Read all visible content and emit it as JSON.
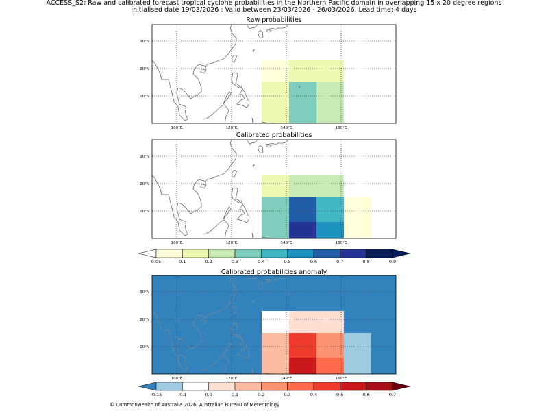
{
  "figure": {
    "title_line1": "ACCESS_S2: Raw and calibrated forecast tropical cyclone probabilities in the Northern Pacific domain in overlapping 15 x 20 degree regions",
    "title_line2": "initialised date 19/03/2026 :  Valid between 23/03/2026 - 26/03/2026. Lead time: 4 days",
    "footer": "© Commonwealth of Australia 2026, Australian Bureau of Meteorology"
  },
  "axes": {
    "lon_ticks": [
      "100°E",
      "120°E",
      "140°E",
      "160°E"
    ],
    "lat_ticks": [
      "30°N",
      "20°N",
      "10°N"
    ]
  },
  "colors": {
    "prob_scale": [
      "#ffffd9",
      "#edf8b1",
      "#c7e9b4",
      "#7fcdbb",
      "#41b6c4",
      "#1d91c0",
      "#225ea8",
      "#253494",
      "#081d58"
    ],
    "prob_under": "#ffffff",
    "prob_over": "#081d58",
    "anom_scale": [
      "#9ecae1",
      "#ffffff",
      "#fee0d2",
      "#fcbba1",
      "#fc9272",
      "#fb6a4a",
      "#ef3b2c",
      "#cb181d",
      "#a50f15"
    ],
    "anom_under": "#3182bd",
    "anom_over": "#67000d",
    "anom_background": "#3182bd",
    "coast_dark": "#555555",
    "coast_light": "#888888"
  },
  "chart_data": [
    {
      "type": "heatmap",
      "title": "Raw probabilities",
      "xlim": [
        91,
        180
      ],
      "ylim": [
        0,
        36
      ],
      "cells": [
        {
          "lon0": 131,
          "lon1": 141,
          "lat0": 15,
          "lat1": 23,
          "color_index": 0
        },
        {
          "lon0": 141,
          "lon1": 161,
          "lat0": 15,
          "lat1": 23,
          "color_index": 1
        },
        {
          "lon0": 131,
          "lon1": 141,
          "lat0": 0,
          "lat1": 15,
          "color_index": 1
        },
        {
          "lon0": 141,
          "lon1": 151,
          "lat0": 0,
          "lat1": 15,
          "color_index": 3
        },
        {
          "lon0": 151,
          "lon1": 161,
          "lat0": 0,
          "lat1": 15,
          "color_index": 2
        }
      ]
    },
    {
      "type": "heatmap",
      "title": "Calibrated probabilities",
      "xlim": [
        91,
        180
      ],
      "ylim": [
        0,
        36
      ],
      "cells": [
        {
          "lon0": 131,
          "lon1": 141,
          "lat0": 15,
          "lat1": 23,
          "color_index": 1
        },
        {
          "lon0": 141,
          "lon1": 161,
          "lat0": 15,
          "lat1": 23,
          "color_index": 2
        },
        {
          "lon0": 131,
          "lon1": 141,
          "lat0": 0,
          "lat1": 15,
          "color_index": 3
        },
        {
          "lon0": 141,
          "lon1": 151,
          "lat0": 6,
          "lat1": 15,
          "color_index": 6
        },
        {
          "lon0": 141,
          "lon1": 151,
          "lat0": 0,
          "lat1": 6,
          "color_index": 7
        },
        {
          "lon0": 151,
          "lon1": 161,
          "lat0": 6,
          "lat1": 15,
          "color_index": 4
        },
        {
          "lon0": 151,
          "lon1": 161,
          "lat0": 0,
          "lat1": 6,
          "color_index": 5
        },
        {
          "lon0": 161,
          "lon1": 171,
          "lat0": 0,
          "lat1": 15,
          "color_index": 0
        }
      ]
    },
    {
      "type": "heatmap",
      "title": "Calibrated probabilities anomaly",
      "xlim": [
        91,
        180
      ],
      "ylim": [
        0,
        36
      ],
      "background": "#3182bd",
      "cells": [
        {
          "lon0": 131,
          "lon1": 141,
          "lat0": 15,
          "lat1": 23,
          "color_index": 1
        },
        {
          "lon0": 141,
          "lon1": 161,
          "lat0": 15,
          "lat1": 23,
          "color_index": 2
        },
        {
          "lon0": 131,
          "lon1": 141,
          "lat0": 0,
          "lat1": 15,
          "color_index": 3
        },
        {
          "lon0": 141,
          "lon1": 151,
          "lat0": 6,
          "lat1": 15,
          "color_index": 6
        },
        {
          "lon0": 141,
          "lon1": 151,
          "lat0": 0,
          "lat1": 6,
          "color_index": 7
        },
        {
          "lon0": 151,
          "lon1": 161,
          "lat0": 6,
          "lat1": 15,
          "color_index": 4
        },
        {
          "lon0": 151,
          "lon1": 161,
          "lat0": 0,
          "lat1": 6,
          "color_index": 5
        },
        {
          "lon0": 161,
          "lon1": 171,
          "lat0": 0,
          "lat1": 15,
          "color_index": 0
        }
      ]
    }
  ],
  "colorbars": {
    "probability": {
      "ticks": [
        "0.05",
        "0.1",
        "0.2",
        "0.3",
        "0.4",
        "0.5",
        "0.6",
        "0.7",
        "0.8",
        "0.9"
      ]
    },
    "anomaly": {
      "ticks": [
        "-0.15",
        "-0.1",
        "0.0",
        "0.1",
        "0.2",
        "0.3",
        "0.4",
        "0.5",
        "0.6",
        "0.7"
      ]
    }
  }
}
